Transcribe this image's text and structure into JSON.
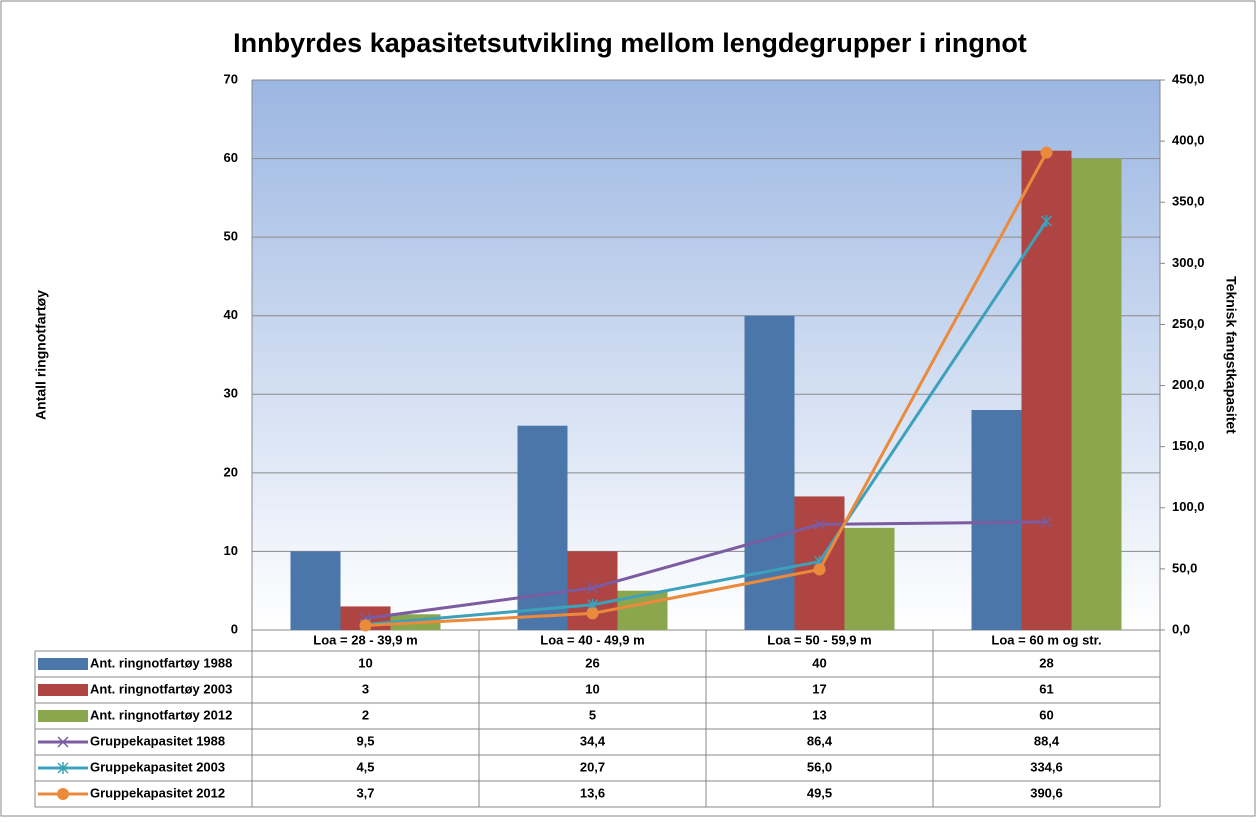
{
  "chart_data": {
    "type": "bar",
    "title": "Innbyrdes kapasitetsutvikling mellom lengdegrupper i ringnot",
    "y_label": "Antall ringnotfartøy",
    "y2_label": "Teknisk fangstkapasitet",
    "categories": [
      "Loa = 28 - 39,9 m",
      "Loa = 40 - 49,9 m",
      "Loa = 50 - 59,9 m",
      "Loa = 60 m og str."
    ],
    "ylim": [
      0,
      70
    ],
    "yticks": [
      0,
      10,
      20,
      30,
      40,
      50,
      60,
      70
    ],
    "y2lim": [
      0,
      450
    ],
    "y2ticks": [
      {
        "value": 0,
        "label": "0,0"
      },
      {
        "value": 50,
        "label": "50,0"
      },
      {
        "value": 100,
        "label": "100,0"
      },
      {
        "value": 150,
        "label": "150,0"
      },
      {
        "value": 200,
        "label": "200,0"
      },
      {
        "value": 250,
        "label": "250,0"
      },
      {
        "value": 300,
        "label": "300,0"
      },
      {
        "value": 350,
        "label": "350,0"
      },
      {
        "value": 400,
        "label": "400,0"
      },
      {
        "value": 450,
        "label": "450,0"
      }
    ],
    "grid": true,
    "series": [
      {
        "name": "Ant. ringnotfartøy 1988",
        "type": "bar",
        "color": "#4a76aa",
        "values": [
          10,
          26,
          40,
          28
        ]
      },
      {
        "name": "Ant. ringnotfartøy 2003",
        "type": "bar",
        "color": "#ae4542",
        "values": [
          3,
          10,
          17,
          61
        ]
      },
      {
        "name": "Ant. ringnotfartøy 2012",
        "type": "bar",
        "color": "#8aa74e",
        "values": [
          2,
          5,
          13,
          60
        ]
      },
      {
        "name": "Gruppekapasitet 1988",
        "type": "line",
        "axis": "y2",
        "marker": "x",
        "color": "#7b5ca0",
        "values": [
          9.5,
          34.4,
          86.4,
          88.4
        ],
        "value_labels": [
          "9,5",
          "34,4",
          "86,4",
          "88,4"
        ]
      },
      {
        "name": "Gruppekapasitet 2003",
        "type": "line",
        "axis": "y2",
        "marker": "asterisk",
        "color": "#3ea1bb",
        "values": [
          4.5,
          20.7,
          56.0,
          334.6
        ],
        "value_labels": [
          "4,5",
          "20,7",
          "56,0",
          "334,6"
        ]
      },
      {
        "name": "Gruppekapasitet 2012",
        "type": "line",
        "axis": "y2",
        "marker": "circle",
        "color": "#ec8a3c",
        "values": [
          3.7,
          13.6,
          49.5,
          390.6
        ],
        "value_labels": [
          "3,7",
          "13,6",
          "49,5",
          "390,6"
        ]
      }
    ]
  }
}
